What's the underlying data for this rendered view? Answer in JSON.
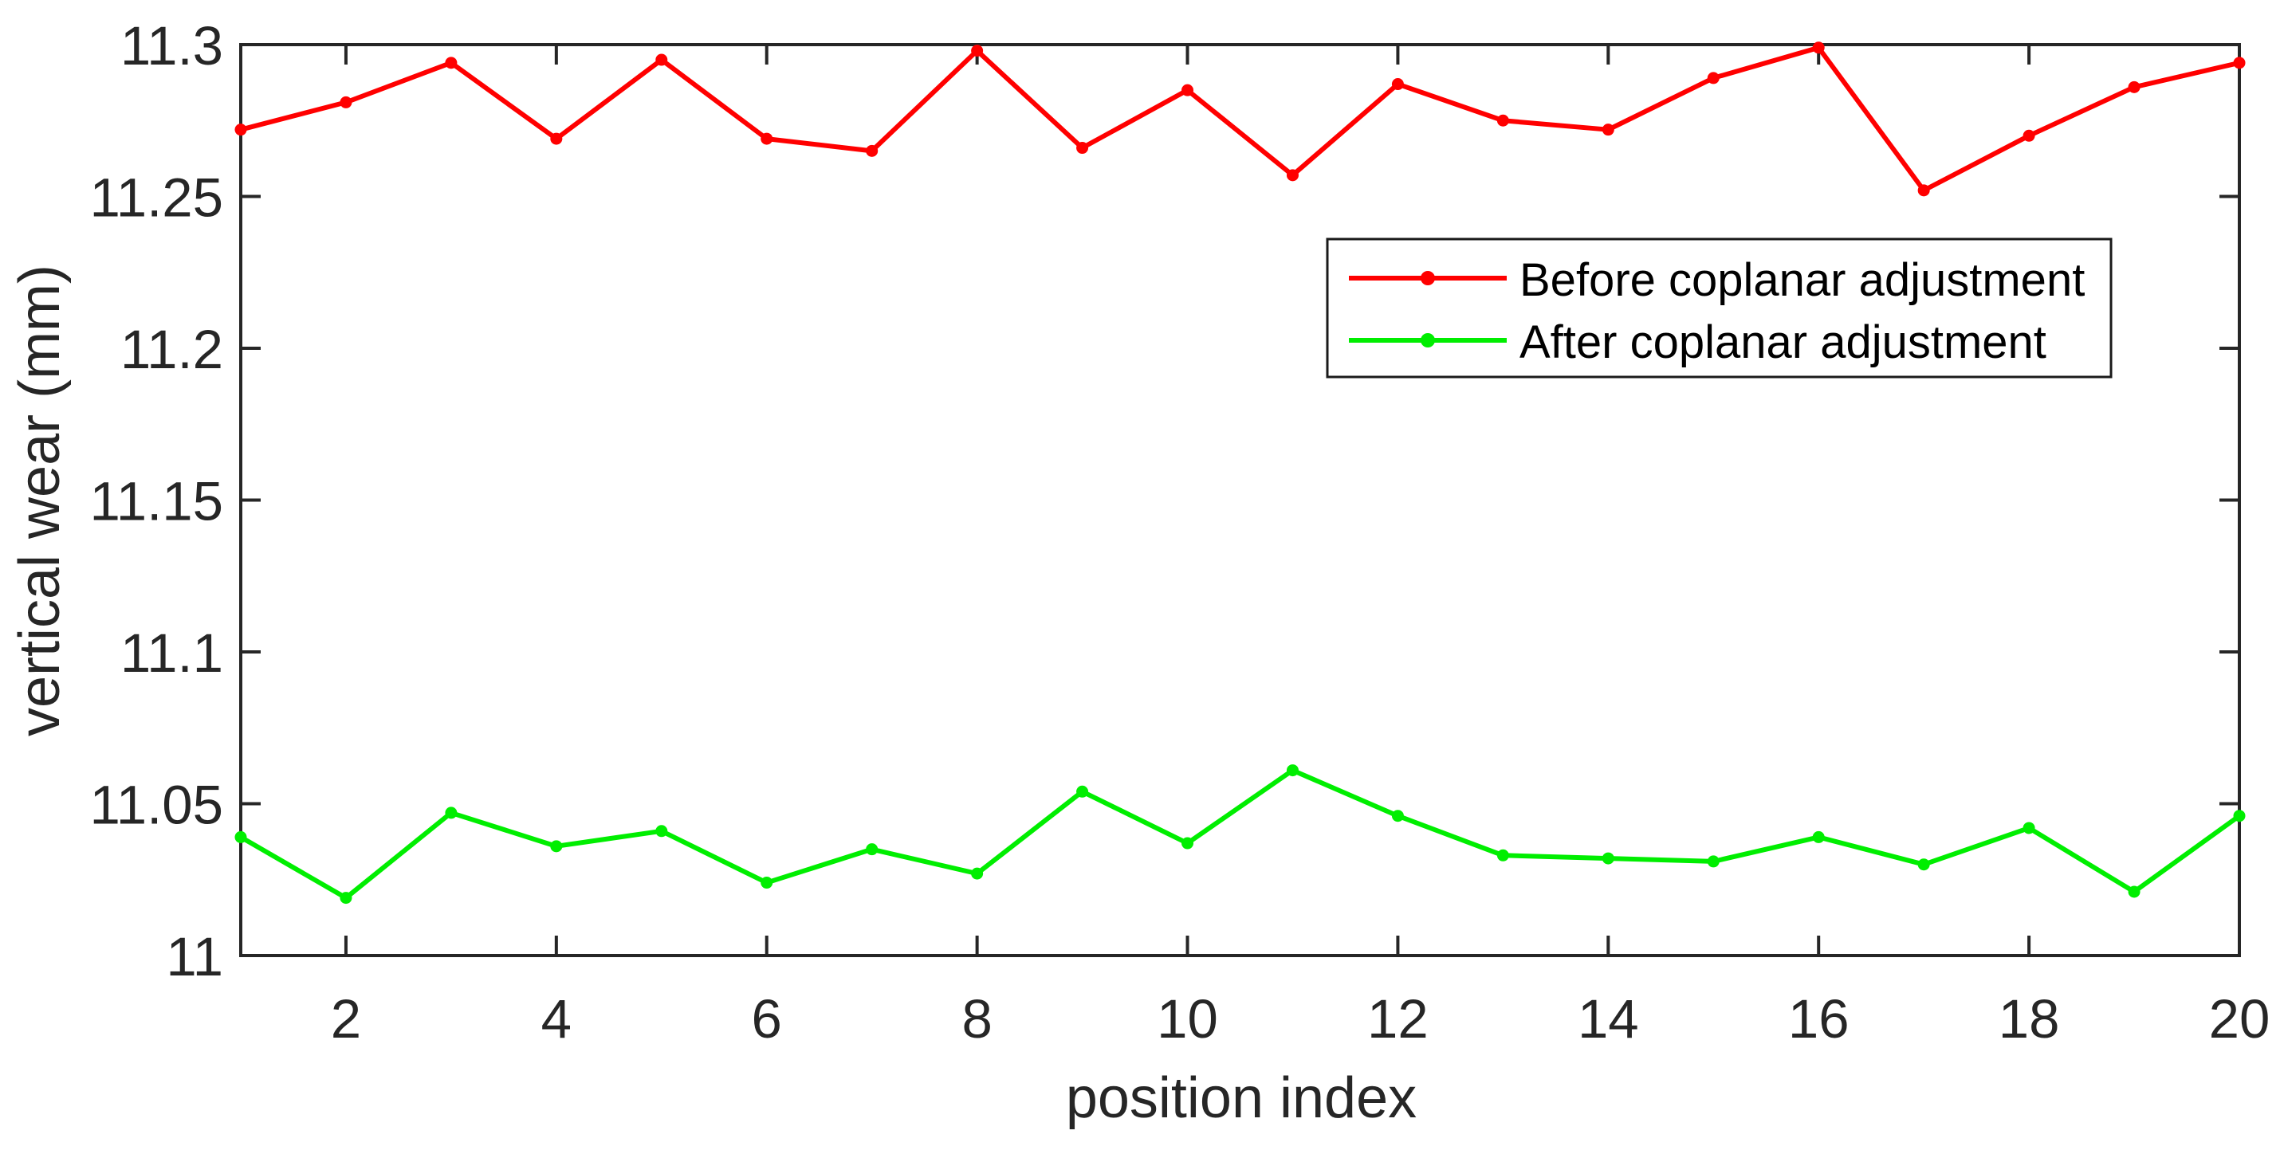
{
  "figure": {
    "background": "#ffffff"
  },
  "chart_data": {
    "type": "line",
    "title": "",
    "xlabel": "position index",
    "ylabel": "vertical wear (mm)",
    "xlim": [
      1,
      20
    ],
    "ylim": [
      11,
      11.3
    ],
    "xticks": [
      2,
      4,
      6,
      8,
      10,
      12,
      14,
      16,
      18,
      20
    ],
    "yticks": [
      11,
      11.05,
      11.1,
      11.15,
      11.2,
      11.25,
      11.3
    ],
    "ytick_labels": [
      "11",
      "11.05",
      "11.1",
      "11.15",
      "11.2",
      "11.25",
      "11.3"
    ],
    "grid": false,
    "axis_color": "#262626",
    "legend": {
      "position": "upper-right-inside",
      "border_color": "#000000",
      "background": "#ffffff"
    },
    "x": [
      1,
      2,
      3,
      4,
      5,
      6,
      7,
      8,
      9,
      10,
      11,
      12,
      13,
      14,
      15,
      16,
      17,
      18,
      19,
      20
    ],
    "series": [
      {
        "name": "Before coplanar adjustment",
        "color": "#ff0000",
        "marker": "point",
        "values": [
          11.272,
          11.281,
          11.294,
          11.269,
          11.295,
          11.269,
          11.265,
          11.298,
          11.266,
          11.285,
          11.257,
          11.287,
          11.275,
          11.272,
          11.289,
          11.299,
          11.252,
          11.27,
          11.286,
          11.294
        ]
      },
      {
        "name": "After coplanar adjustment",
        "color": "#00ee00",
        "marker": "point",
        "values": [
          11.039,
          11.019,
          11.047,
          11.036,
          11.041,
          11.024,
          11.035,
          11.027,
          11.054,
          11.037,
          11.061,
          11.046,
          11.033,
          11.032,
          11.031,
          11.039,
          11.03,
          11.042,
          11.021,
          11.046
        ]
      }
    ]
  }
}
